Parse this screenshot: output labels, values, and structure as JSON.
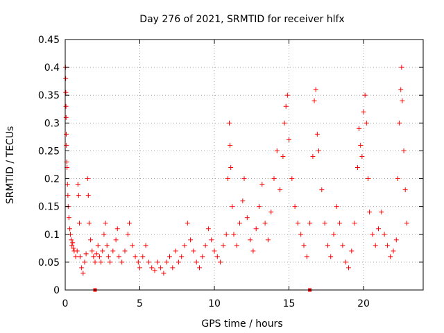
{
  "chart_data": {
    "type": "scatter",
    "title": "Day 276 of 2021, SRMTID for receiver hlfx",
    "xlabel": "GPS time / hours",
    "ylabel": "SRMTID / TECUs",
    "xlim": [
      0,
      24
    ],
    "ylim": [
      0,
      0.45
    ],
    "xticks": [
      0,
      5,
      10,
      15,
      20
    ],
    "xtick_labels": [
      "0",
      "5",
      "10",
      "15",
      "20"
    ],
    "yticks": [
      0,
      0.05,
      0.1,
      0.15,
      0.2,
      0.25,
      0.3,
      0.35,
      0.4,
      0.45
    ],
    "ytick_labels": [
      "0",
      "0.05",
      "0.1",
      "0.15",
      "0.2",
      "0.25",
      "0.3",
      "0.35",
      "0.4",
      "0.45"
    ],
    "grid": true,
    "marker": "+",
    "marker_color": "#ff0000",
    "series": [
      {
        "points": [
          [
            0.02,
            0.4
          ],
          [
            0.03,
            0.38
          ],
          [
            0.04,
            0.355
          ],
          [
            0.05,
            0.33
          ],
          [
            0.06,
            0.31
          ],
          [
            0.07,
            0.28
          ],
          [
            0.08,
            0.26
          ],
          [
            0.1,
            0.23
          ],
          [
            0.12,
            0.22
          ],
          [
            0.15,
            0.19
          ],
          [
            0.18,
            0.17
          ],
          [
            0.2,
            0.15
          ],
          [
            0.25,
            0.13
          ],
          [
            0.3,
            0.11
          ],
          [
            0.35,
            0.1
          ],
          [
            0.4,
            0.09
          ],
          [
            0.45,
            0.08
          ],
          [
            0.5,
            0.085
          ],
          [
            0.55,
            0.075
          ],
          [
            0.6,
            0.07
          ],
          [
            0.7,
            0.06
          ],
          [
            0.8,
            0.07
          ],
          [
            0.85,
            0.19
          ],
          [
            0.9,
            0.17
          ],
          [
            0.95,
            0.12
          ],
          [
            1.0,
            0.06
          ],
          [
            1.1,
            0.04
          ],
          [
            1.2,
            0.03
          ],
          [
            1.3,
            0.05
          ],
          [
            1.4,
            0.065
          ],
          [
            1.5,
            0.2
          ],
          [
            1.55,
            0.17
          ],
          [
            1.6,
            0.12
          ],
          [
            1.7,
            0.09
          ],
          [
            1.8,
            0.07
          ],
          [
            1.9,
            0.06
          ],
          [
            2.0,
            0.05
          ],
          [
            2.1,
            0.065
          ],
          [
            2.2,
            0.08
          ],
          [
            2.3,
            0.06
          ],
          [
            2.4,
            0.05
          ],
          [
            2.5,
            0.07
          ],
          [
            2.6,
            0.1
          ],
          [
            2.7,
            0.12
          ],
          [
            2.8,
            0.08
          ],
          [
            2.9,
            0.06
          ],
          [
            3.0,
            0.05
          ],
          [
            3.2,
            0.07
          ],
          [
            3.4,
            0.09
          ],
          [
            3.5,
            0.11
          ],
          [
            3.6,
            0.06
          ],
          [
            3.8,
            0.05
          ],
          [
            4.0,
            0.07
          ],
          [
            4.2,
            0.1
          ],
          [
            4.3,
            0.12
          ],
          [
            4.5,
            0.08
          ],
          [
            4.7,
            0.06
          ],
          [
            4.9,
            0.05
          ],
          [
            5.0,
            0.04
          ],
          [
            5.2,
            0.06
          ],
          [
            5.4,
            0.08
          ],
          [
            5.6,
            0.05
          ],
          [
            5.8,
            0.04
          ],
          [
            6.0,
            0.035
          ],
          [
            6.2,
            0.05
          ],
          [
            6.4,
            0.04
          ],
          [
            6.6,
            0.03
          ],
          [
            6.8,
            0.05
          ],
          [
            7.0,
            0.06
          ],
          [
            7.2,
            0.04
          ],
          [
            7.4,
            0.07
          ],
          [
            7.6,
            0.05
          ],
          [
            7.8,
            0.06
          ],
          [
            8.0,
            0.08
          ],
          [
            8.2,
            0.12
          ],
          [
            8.4,
            0.09
          ],
          [
            8.6,
            0.07
          ],
          [
            8.8,
            0.05
          ],
          [
            9.0,
            0.04
          ],
          [
            9.2,
            0.06
          ],
          [
            9.4,
            0.08
          ],
          [
            9.6,
            0.11
          ],
          [
            9.8,
            0.09
          ],
          [
            10.0,
            0.07
          ],
          [
            10.2,
            0.06
          ],
          [
            10.4,
            0.05
          ],
          [
            10.6,
            0.08
          ],
          [
            10.8,
            0.1
          ],
          [
            10.9,
            0.2
          ],
          [
            11.0,
            0.3
          ],
          [
            11.05,
            0.26
          ],
          [
            11.1,
            0.22
          ],
          [
            11.2,
            0.15
          ],
          [
            11.3,
            0.1
          ],
          [
            11.5,
            0.08
          ],
          [
            11.7,
            0.12
          ],
          [
            11.9,
            0.16
          ],
          [
            12.0,
            0.2
          ],
          [
            12.2,
            0.13
          ],
          [
            12.4,
            0.09
          ],
          [
            12.6,
            0.07
          ],
          [
            12.8,
            0.11
          ],
          [
            13.0,
            0.15
          ],
          [
            13.2,
            0.19
          ],
          [
            13.4,
            0.12
          ],
          [
            13.6,
            0.09
          ],
          [
            13.8,
            0.14
          ],
          [
            14.0,
            0.2
          ],
          [
            14.2,
            0.25
          ],
          [
            14.4,
            0.18
          ],
          [
            14.6,
            0.24
          ],
          [
            14.7,
            0.3
          ],
          [
            14.8,
            0.33
          ],
          [
            14.9,
            0.35
          ],
          [
            15.0,
            0.27
          ],
          [
            15.2,
            0.2
          ],
          [
            15.4,
            0.15
          ],
          [
            15.6,
            0.12
          ],
          [
            15.8,
            0.1
          ],
          [
            16.0,
            0.08
          ],
          [
            16.2,
            0.06
          ],
          [
            16.4,
            0.12
          ],
          [
            16.6,
            0.24
          ],
          [
            16.7,
            0.34
          ],
          [
            16.8,
            0.36
          ],
          [
            16.9,
            0.28
          ],
          [
            17.0,
            0.25
          ],
          [
            17.2,
            0.18
          ],
          [
            17.4,
            0.12
          ],
          [
            17.6,
            0.08
          ],
          [
            17.8,
            0.06
          ],
          [
            18.0,
            0.1
          ],
          [
            18.2,
            0.15
          ],
          [
            18.4,
            0.12
          ],
          [
            18.6,
            0.08
          ],
          [
            18.8,
            0.05
          ],
          [
            19.0,
            0.04
          ],
          [
            19.2,
            0.07
          ],
          [
            19.4,
            0.12
          ],
          [
            19.6,
            0.22
          ],
          [
            19.7,
            0.29
          ],
          [
            19.8,
            0.26
          ],
          [
            19.9,
            0.24
          ],
          [
            20.0,
            0.32
          ],
          [
            20.1,
            0.35
          ],
          [
            20.2,
            0.3
          ],
          [
            20.3,
            0.2
          ],
          [
            20.4,
            0.14
          ],
          [
            20.6,
            0.1
          ],
          [
            20.8,
            0.08
          ],
          [
            21.0,
            0.11
          ],
          [
            21.2,
            0.14
          ],
          [
            21.4,
            0.1
          ],
          [
            21.6,
            0.08
          ],
          [
            21.8,
            0.06
          ],
          [
            22.0,
            0.07
          ],
          [
            22.2,
            0.09
          ],
          [
            22.3,
            0.2
          ],
          [
            22.4,
            0.3
          ],
          [
            22.5,
            0.36
          ],
          [
            22.55,
            0.4
          ],
          [
            22.6,
            0.34
          ],
          [
            22.7,
            0.25
          ],
          [
            22.8,
            0.18
          ],
          [
            22.9,
            0.12
          ]
        ]
      }
    ],
    "x_axis_markers": [
      2.0,
      16.4
    ]
  }
}
